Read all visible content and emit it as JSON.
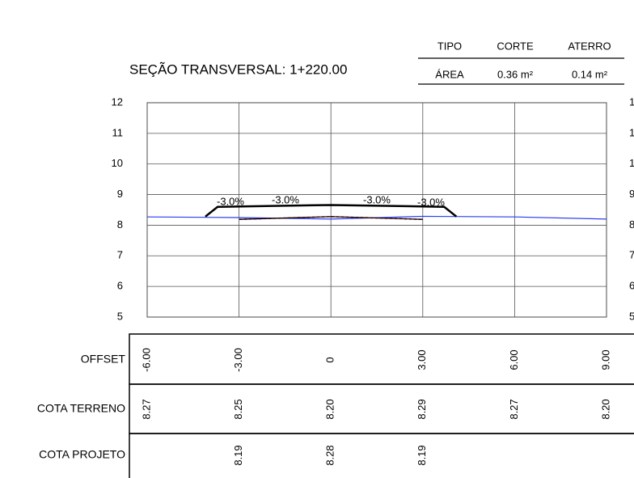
{
  "chart_data": {
    "type": "cross-section",
    "title": "SEÇÃO TRANSVERSAL: 1+220.00",
    "summary": {
      "header": [
        "TIPO",
        "CORTE",
        "ATERRO"
      ],
      "row": [
        "ÁREA",
        "0.36 m²",
        "0.14 m²"
      ]
    },
    "ylim": [
      5,
      12
    ],
    "yticks": [
      5,
      6,
      7,
      8,
      9,
      10,
      11,
      12
    ],
    "xlim": [
      -6,
      9
    ],
    "grid": true,
    "offsets": {
      "label": "OFFSET",
      "values": [
        {
          "value": -6,
          "label": "-6.00"
        },
        {
          "value": -3,
          "label": "-3.00"
        },
        0,
        {
          "value": 3,
          "label": "3.00"
        },
        {
          "value": 6,
          "label": "6.00"
        },
        {
          "value": 9,
          "label": "9.00"
        }
      ]
    },
    "terrain": {
      "label": "COTA TERRENO",
      "color": "#2a3cf0",
      "values": [
        8.27,
        8.25,
        {
          "value": 8.2,
          "label": "8.20"
        },
        8.29,
        8.27,
        {
          "value": 8.2,
          "label": "8.20"
        }
      ]
    },
    "design": {
      "label": "COTA PROJETO",
      "color": "#000000",
      "values": [
        null,
        8.19,
        8.28,
        8.19,
        null,
        null
      ]
    },
    "surface": {
      "color": "#000000",
      "x": [
        -4.1,
        -3.7,
        0,
        3.7,
        4.1
      ],
      "y": [
        8.28,
        8.6,
        8.66,
        8.6,
        8.28
      ]
    },
    "slope_labels": [
      "-3.0%",
      "-3.0%",
      "-3.0%",
      "-3.0%"
    ]
  }
}
